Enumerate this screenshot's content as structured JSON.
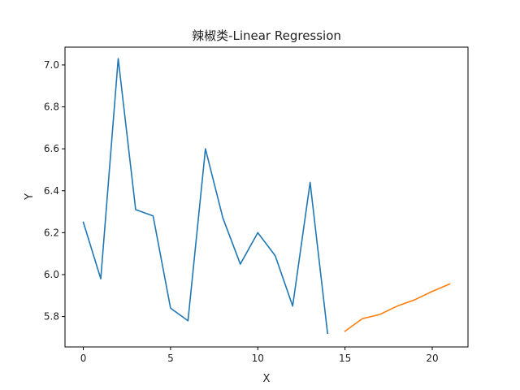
{
  "chart_data": {
    "type": "line",
    "title": "辣椒类-Linear Regression",
    "xlabel": "X",
    "ylabel": "Y",
    "xlim": [
      -1.05,
      22.05
    ],
    "ylim": [
      5.655,
      7.085
    ],
    "x_ticks": [
      0,
      5,
      10,
      15,
      20
    ],
    "y_ticks": [
      5.8,
      6.0,
      6.2,
      6.4,
      6.6,
      6.8,
      7.0
    ],
    "x_tick_labels": [
      "0",
      "5",
      "10",
      "15",
      "20"
    ],
    "y_tick_labels": [
      "5.8",
      "6.0",
      "6.2",
      "6.4",
      "6.6",
      "6.8",
      "7.0"
    ],
    "grid": false,
    "legend": "none",
    "series": [
      {
        "color": "#1f77b4",
        "x": [
          0,
          1,
          2,
          3,
          4,
          5,
          6,
          7,
          8,
          9,
          10,
          11,
          12,
          13,
          14
        ],
        "y": [
          6.25,
          5.98,
          7.03,
          6.31,
          6.28,
          5.84,
          5.78,
          6.6,
          6.27,
          6.05,
          6.2,
          6.09,
          5.85,
          6.44,
          5.72
        ]
      },
      {
        "color": "#ff7f0e",
        "x": [
          15,
          16,
          17,
          18,
          19,
          20,
          21
        ],
        "y": [
          5.73,
          5.79,
          5.81,
          5.85,
          5.88,
          5.92,
          5.955
        ]
      }
    ]
  }
}
